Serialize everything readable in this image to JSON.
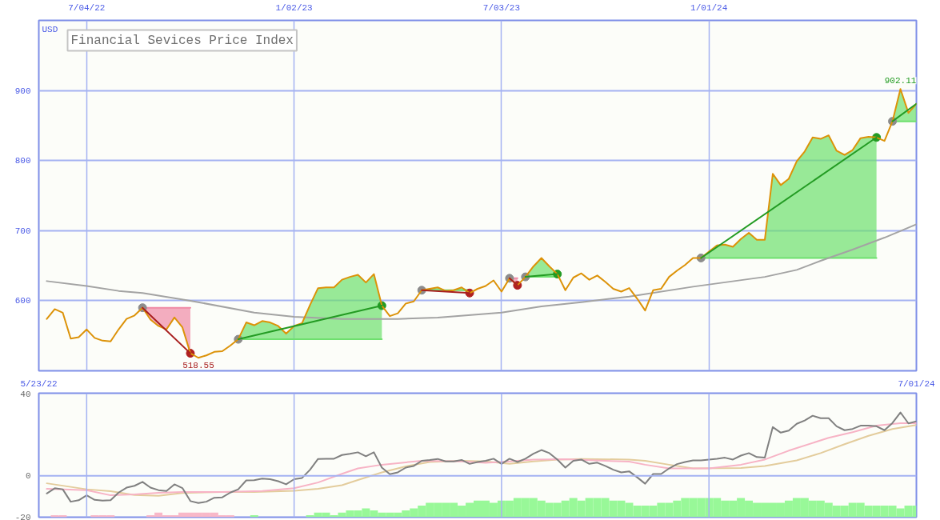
{
  "chart_data": [
    {
      "type": "line",
      "title": "Financial Sevices Price Index",
      "ylabel": "USD",
      "x": [
        "2022-05-30",
        "2022-06-06",
        "2022-06-13",
        "2022-06-20",
        "2022-06-27",
        "2022-07-04",
        "2022-07-11",
        "2022-07-18",
        "2022-07-25",
        "2022-08-01",
        "2022-08-08",
        "2022-08-15",
        "2022-08-22",
        "2022-08-29",
        "2022-09-05",
        "2022-09-12",
        "2022-09-19",
        "2022-09-26",
        "2022-10-03",
        "2022-10-10",
        "2022-10-17",
        "2022-10-24",
        "2022-10-31",
        "2022-11-07",
        "2022-11-14",
        "2022-11-21",
        "2022-11-28",
        "2022-12-05",
        "2022-12-12",
        "2022-12-19",
        "2022-12-26",
        "2023-01-02",
        "2023-01-09",
        "2023-01-16",
        "2023-01-23",
        "2023-01-30",
        "2023-02-06",
        "2023-02-13",
        "2023-02-20",
        "2023-02-27",
        "2023-03-06",
        "2023-03-13",
        "2023-03-20",
        "2023-03-27",
        "2023-04-03",
        "2023-04-10",
        "2023-04-17",
        "2023-04-24",
        "2023-05-01",
        "2023-05-08",
        "2023-05-15",
        "2023-05-22",
        "2023-05-29",
        "2023-06-05",
        "2023-06-12",
        "2023-06-19",
        "2023-06-26",
        "2023-07-03",
        "2023-07-10",
        "2023-07-17",
        "2023-07-24",
        "2023-07-31",
        "2023-08-07",
        "2023-08-14",
        "2023-08-21",
        "2023-08-28",
        "2023-09-04",
        "2023-09-11",
        "2023-09-18",
        "2023-09-25",
        "2023-10-02",
        "2023-10-09",
        "2023-10-16",
        "2023-10-23",
        "2023-10-30",
        "2023-11-06",
        "2023-11-13",
        "2023-11-20",
        "2023-11-27",
        "2023-12-04",
        "2023-12-11",
        "2023-12-18",
        "2023-12-25",
        "2024-01-01",
        "2024-01-08",
        "2024-01-15",
        "2024-01-22",
        "2024-01-29",
        "2024-02-05",
        "2024-02-12",
        "2024-02-19",
        "2024-02-26",
        "2024-03-04",
        "2024-03-11",
        "2024-03-18",
        "2024-03-25",
        "2024-04-01",
        "2024-04-08",
        "2024-04-15",
        "2024-04-22",
        "2024-04-29",
        "2024-05-06",
        "2024-05-13",
        "2024-05-20",
        "2024-05-27",
        "2024-06-03",
        "2024-06-10",
        "2024-06-17",
        "2024-06-24",
        "2024-07-01"
      ],
      "xlim": [
        "2022-05-23",
        "2024-07-01"
      ],
      "xticks": [
        {
          "value": "2022-05-23",
          "label": "5/23/22"
        },
        {
          "value": "2024-07-01",
          "label": "7/01/24"
        }
      ],
      "x2lim": [
        "2022-05-23",
        "2024-07-01"
      ],
      "x2ticks": [
        {
          "value": "2022-07-04",
          "label": "7/04/22"
        },
        {
          "value": "2023-01-02",
          "label": "1/02/23"
        },
        {
          "value": "2023-07-03",
          "label": "7/03/23"
        },
        {
          "value": "2024-01-01",
          "label": "1/01/24"
        }
      ],
      "ylim": [
        500,
        1000
      ],
      "yticks": [
        600,
        700,
        800,
        900
      ],
      "grid": true,
      "annotations": [
        {
          "text": "518.55",
          "x": "2022-10-10",
          "y": 518.55
        },
        {
          "text": "902.11",
          "x": "2024-06-17",
          "y": 902.11
        }
      ],
      "series": [
        {
          "color": "#f08aa6",
          "x": [
            "2022-08-22",
            "2022-08-29",
            "2022-09-05",
            "2022-09-12",
            "2022-09-19",
            "2022-09-26",
            "2022-10-03"
          ],
          "values": [
            590,
            590,
            590,
            590,
            590,
            590,
            590
          ],
          "lower": [
            590,
            573,
            564,
            559,
            576,
            562,
            525
          ],
          "upper": [
            590,
            590,
            590,
            590,
            590,
            590,
            590
          ]
        },
        {
          "color": "#6ee06e",
          "x": [
            "2022-11-14",
            "2022-11-21",
            "2022-11-28",
            "2022-12-05",
            "2022-12-12",
            "2022-12-19",
            "2022-12-26",
            "2023-01-02",
            "2023-01-09",
            "2023-01-16",
            "2023-01-23",
            "2023-01-30",
            "2023-02-06",
            "2023-02-13",
            "2023-02-20",
            "2023-02-27",
            "2023-03-06",
            "2023-03-13",
            "2023-03-20"
          ],
          "values": [
            545,
            545,
            545,
            545,
            545,
            545,
            545,
            545,
            545,
            545,
            545,
            545,
            545,
            545,
            545,
            545,
            545,
            545,
            545
          ],
          "lower": [
            545,
            545,
            545,
            545,
            545,
            545,
            545,
            545,
            545,
            545,
            545,
            545,
            545,
            545,
            545,
            545,
            545,
            545,
            545
          ],
          "upper": [
            545,
            569,
            565,
            571,
            569,
            564,
            553,
            564,
            568,
            594,
            618,
            619,
            619,
            630,
            634,
            637,
            626,
            638,
            593
          ]
        },
        {
          "color": "#6ee06e",
          "x": [
            "2023-04-24",
            "2023-05-01",
            "2023-05-08",
            "2023-05-15",
            "2023-05-22",
            "2023-05-29",
            "2023-06-05"
          ],
          "values": [
            615,
            615,
            615,
            615,
            615,
            615,
            615
          ],
          "lower": [
            615,
            615,
            615,
            614,
            615,
            615,
            611
          ],
          "upper": [
            615,
            617,
            619,
            615,
            615,
            619,
            615
          ]
        },
        {
          "color": "#f08aa6",
          "x": [
            "2023-07-10",
            "2023-07-17"
          ],
          "values": [
            632,
            632
          ],
          "lower": [
            632,
            622
          ],
          "upper": [
            632,
            632
          ]
        },
        {
          "color": "#6ee06e",
          "x": [
            "2023-07-24",
            "2023-07-31",
            "2023-08-07",
            "2023-08-14",
            "2023-08-21"
          ],
          "values": [
            634,
            634,
            634,
            634,
            634
          ],
          "lower": [
            634,
            634,
            634,
            634,
            634
          ],
          "upper": [
            634,
            649,
            661,
            649,
            638
          ]
        },
        {
          "color": "#6ee06e",
          "x": [
            "2023-12-25",
            "2024-01-01",
            "2024-01-08",
            "2024-01-15",
            "2024-01-22",
            "2024-01-29",
            "2024-02-05",
            "2024-02-12",
            "2024-02-19",
            "2024-02-26",
            "2024-03-04",
            "2024-03-11",
            "2024-03-18",
            "2024-03-25",
            "2024-04-01",
            "2024-04-08",
            "2024-04-15",
            "2024-04-22",
            "2024-04-29",
            "2024-05-06",
            "2024-05-13",
            "2024-05-20",
            "2024-05-27"
          ],
          "values": [
            661,
            661,
            661,
            661,
            661,
            661,
            661,
            661,
            661,
            661,
            661,
            661,
            661,
            661,
            661,
            661,
            661,
            661,
            661,
            661,
            661,
            661,
            661
          ],
          "lower": [
            661,
            661,
            661,
            661,
            661,
            661,
            661,
            661,
            661,
            661,
            661,
            661,
            661,
            661,
            661,
            661,
            661,
            661,
            661,
            661,
            661,
            661,
            661
          ],
          "upper": [
            661,
            670,
            679,
            680,
            677,
            688,
            697,
            687,
            687,
            781,
            765,
            774,
            799,
            813,
            833,
            831,
            836,
            814,
            808,
            815,
            832,
            834,
            833
          ]
        },
        {
          "color": "#6ee06e",
          "x": [
            "2024-06-10",
            "2024-06-17",
            "2024-06-24",
            "2024-07-01"
          ],
          "values": [
            856,
            856,
            856,
            856
          ],
          "lower": [
            856,
            856,
            856,
            856
          ],
          "upper": [
            856,
            902.11,
            868,
            881
          ]
        },
        {
          "color": "#a3a3a3",
          "x": [
            "2022-05-30",
            "2022-07-04",
            "2022-08-01",
            "2022-08-22",
            "2022-10-03",
            "2022-11-28",
            "2023-01-02",
            "2023-02-13",
            "2023-04-03",
            "2023-05-08",
            "2023-07-03",
            "2023-08-07",
            "2023-09-11",
            "2023-10-23",
            "2023-12-18",
            "2024-02-19",
            "2024-03-18",
            "2024-04-08",
            "2024-05-06",
            "2024-06-03",
            "2024-07-01"
          ],
          "values": [
            628,
            621,
            614,
            611,
            600,
            583,
            577,
            574,
            574,
            576,
            583,
            592,
            598,
            606,
            620,
            634,
            644,
            657,
            673,
            690,
            709
          ]
        },
        {
          "type": "scatter",
          "marker": "circle",
          "color": "#8c8c8c",
          "x": [
            "2022-08-22",
            "2022-11-14",
            "2023-04-24",
            "2023-07-10",
            "2023-07-24",
            "2023-12-25",
            "2024-06-10"
          ],
          "values": [
            590,
            545,
            615,
            632,
            634,
            661,
            856
          ]
        },
        {
          "type": "scatter",
          "marker": "circle",
          "color": "#239b23",
          "x": [
            "2023-03-20",
            "2023-08-21",
            "2024-05-27"
          ],
          "values": [
            593,
            638,
            833
          ]
        },
        {
          "type": "scatter",
          "marker": "circle",
          "color": "#b02020",
          "x": [
            "2022-10-03",
            "2023-06-05",
            "2023-07-17"
          ],
          "values": [
            525,
            611,
            622
          ]
        },
        {
          "color": "#dc9208",
          "values": [
            574,
            588,
            583,
            546,
            548,
            559,
            547,
            543,
            542,
            559,
            574,
            579,
            590,
            573,
            564,
            559,
            576,
            562,
            525,
            518.55,
            522,
            527,
            528,
            536,
            545,
            569,
            565,
            571,
            569,
            564,
            553,
            564,
            568,
            594,
            618,
            619,
            619,
            630,
            634,
            637,
            626,
            638,
            593,
            578,
            582,
            596,
            599,
            615,
            617,
            619,
            614,
            615,
            619,
            611,
            617,
            621,
            629,
            613,
            632,
            622,
            634,
            649,
            661,
            649,
            638,
            615,
            633,
            639,
            630,
            636,
            627,
            617,
            613,
            618,
            603,
            586,
            615,
            617,
            634,
            643,
            651,
            661,
            661,
            670,
            679,
            680,
            677,
            688,
            697,
            687,
            687,
            781,
            765,
            774,
            799,
            813,
            833,
            831,
            836,
            814,
            808,
            815,
            832,
            834,
            833,
            828,
            856,
            902.11,
            868,
            881
          ]
        },
        {
          "color": "#a81e1e",
          "x": [
            "2022-08-22",
            "2022-10-03"
          ],
          "values": [
            590,
            525
          ]
        },
        {
          "color": "#239b23",
          "x": [
            "2022-11-14",
            "2023-03-20"
          ],
          "values": [
            545,
            593
          ]
        },
        {
          "color": "#a81e1e",
          "x": [
            "2023-04-24",
            "2023-06-05"
          ],
          "values": [
            615,
            611
          ]
        },
        {
          "color": "#a81e1e",
          "x": [
            "2023-07-10",
            "2023-07-17"
          ],
          "values": [
            632,
            622
          ]
        },
        {
          "color": "#239b23",
          "x": [
            "2023-07-24",
            "2023-08-21"
          ],
          "values": [
            634,
            638
          ]
        },
        {
          "color": "#239b23",
          "x": [
            "2023-12-25",
            "2024-05-27"
          ],
          "values": [
            661,
            833
          ]
        },
        {
          "color": "#239b23",
          "x": [
            "2024-06-10",
            "2024-07-01"
          ],
          "values": [
            856,
            881
          ]
        }
      ]
    },
    {
      "type": "line",
      "tick_labels": "y",
      "x": [
        "2022-05-30",
        "2022-06-06",
        "2022-06-13",
        "2022-06-20",
        "2022-06-27",
        "2022-07-04",
        "2022-07-11",
        "2022-07-18",
        "2022-07-25",
        "2022-08-01",
        "2022-08-08",
        "2022-08-15",
        "2022-08-22",
        "2022-08-29",
        "2022-09-05",
        "2022-09-12",
        "2022-09-19",
        "2022-09-26",
        "2022-10-03",
        "2022-10-10",
        "2022-10-17",
        "2022-10-24",
        "2022-10-31",
        "2022-11-07",
        "2022-11-14",
        "2022-11-21",
        "2022-11-28",
        "2022-12-05",
        "2022-12-12",
        "2022-12-19",
        "2022-12-26",
        "2023-01-02",
        "2023-01-09",
        "2023-01-16",
        "2023-01-23",
        "2023-01-30",
        "2023-02-06",
        "2023-02-13",
        "2023-02-20",
        "2023-02-27",
        "2023-03-06",
        "2023-03-13",
        "2023-03-20",
        "2023-03-27",
        "2023-04-03",
        "2023-04-10",
        "2023-04-17",
        "2023-04-24",
        "2023-05-01",
        "2023-05-08",
        "2023-05-15",
        "2023-05-22",
        "2023-05-29",
        "2023-06-05",
        "2023-06-12",
        "2023-06-19",
        "2023-06-26",
        "2023-07-03",
        "2023-07-10",
        "2023-07-17",
        "2023-07-24",
        "2023-07-31",
        "2023-08-07",
        "2023-08-14",
        "2023-08-21",
        "2023-08-28",
        "2023-09-04",
        "2023-09-11",
        "2023-09-18",
        "2023-09-25",
        "2023-10-02",
        "2023-10-09",
        "2023-10-16",
        "2023-10-23",
        "2023-10-30",
        "2023-11-06",
        "2023-11-13",
        "2023-11-20",
        "2023-11-27",
        "2023-12-04",
        "2023-12-11",
        "2023-12-18",
        "2023-12-25",
        "2024-01-01",
        "2024-01-08",
        "2024-01-15",
        "2024-01-22",
        "2024-01-29",
        "2024-02-05",
        "2024-02-12",
        "2024-02-19",
        "2024-02-26",
        "2024-03-04",
        "2024-03-11",
        "2024-03-18",
        "2024-03-25",
        "2024-04-01",
        "2024-04-08",
        "2024-04-15",
        "2024-04-22",
        "2024-04-29",
        "2024-05-06",
        "2024-05-13",
        "2024-05-20",
        "2024-05-27",
        "2024-06-03",
        "2024-06-10",
        "2024-06-17",
        "2024-06-24",
        "2024-07-01"
      ],
      "xlim": [
        "2022-05-23",
        "2024-07-01"
      ],
      "ylim": [
        -20,
        40
      ],
      "yticks": [
        -20,
        0,
        40
      ],
      "ref_lines": [
        {
          "axis": "y",
          "value": 0,
          "color": "#a4b2f2"
        },
        {
          "axis": "x",
          "value": "2022-07-04",
          "color": "#a4b2f2"
        },
        {
          "axis": "x",
          "value": "2023-01-02",
          "color": "#a4b2f2"
        },
        {
          "axis": "x",
          "value": "2023-07-03",
          "color": "#a4b2f2"
        },
        {
          "axis": "x",
          "value": "2024-01-01",
          "color": "#a4b2f2"
        }
      ],
      "series": [
        {
          "type": "bar",
          "colors": [
            "#f8b8c8",
            "#f8b8c8",
            "#f8b8c8",
            "#f8b8c8",
            "#f8b8c8",
            "#f8b8c8",
            "#f8b8c8",
            "#f8b8c8",
            "#f8b8c8",
            "#f8b8c8",
            "#f8b8c8",
            "#f8b8c8",
            "#f8b8c8",
            "#f8b8c8",
            "#f8b8c8",
            "#f8b8c8",
            "#f8b8c8",
            "#f8b8c8",
            "#f8b8c8",
            "#f8b8c8",
            "#f8b8c8",
            "#f8b8c8",
            "#f8b8c8",
            "#f8b8c8",
            "#98f898",
            "#98f898",
            "#98f898",
            "#98f898",
            "#98f898",
            "#98f898",
            "#98f898",
            "#98f898",
            "#98f898",
            "#98f898",
            "#98f898",
            "#98f898",
            "#98f898",
            "#98f898",
            "#98f898",
            "#98f898",
            "#98f898",
            "#98f898",
            "#98f898",
            "#98f898",
            "#98f898",
            "#98f898",
            "#98f898",
            "#98f898",
            "#98f898",
            "#98f898",
            "#98f898",
            "#98f898",
            "#98f898",
            "#98f898",
            "#98f898",
            "#98f898",
            "#98f898",
            "#98f898",
            "#98f898",
            "#98f898",
            "#98f898",
            "#98f898",
            "#98f898",
            "#98f898",
            "#98f898",
            "#98f898",
            "#98f898",
            "#98f898",
            "#98f898",
            "#98f898",
            "#98f898",
            "#98f898",
            "#98f898",
            "#98f898",
            "#98f898",
            "#98f898",
            "#98f898",
            "#98f898",
            "#98f898",
            "#98f898",
            "#98f898",
            "#98f898",
            "#98f898",
            "#98f898",
            "#98f898",
            "#98f898",
            "#98f898",
            "#98f898",
            "#98f898",
            "#98f898",
            "#98f898",
            "#98f898",
            "#98f898",
            "#98f898",
            "#98f898",
            "#98f898",
            "#98f898",
            "#98f898",
            "#98f898",
            "#98f898",
            "#98f898",
            "#98f898",
            "#98f898",
            "#98f898",
            "#98f898",
            "#98f898",
            "#98f898",
            "#98f898",
            "#98f898",
            "#98f898"
          ],
          "values": [
            null,
            1.0,
            1.0,
            null,
            null,
            null,
            1.0,
            1.0,
            1.0,
            null,
            null,
            null,
            null,
            1.0,
            2.2,
            1.0,
            1.0,
            2.2,
            2.2,
            2.2,
            2.2,
            2.2,
            1.0,
            1.0,
            null,
            null,
            1.0,
            null,
            null,
            null,
            null,
            null,
            null,
            1.0,
            2.2,
            2.2,
            1.0,
            2.2,
            3.3,
            3.3,
            4.3,
            3.3,
            2.2,
            2.2,
            2.2,
            3.3,
            4.3,
            5.6,
            7.0,
            7.0,
            7.0,
            7.0,
            5.6,
            7.0,
            8.0,
            8.0,
            7.0,
            8.0,
            8.0,
            9.3,
            9.3,
            9.3,
            8.0,
            7.0,
            7.0,
            8.0,
            9.3,
            8.0,
            9.3,
            9.3,
            9.3,
            8.0,
            8.0,
            7.0,
            5.6,
            5.6,
            5.6,
            7.0,
            7.0,
            8.0,
            9.3,
            9.3,
            9.3,
            9.3,
            9.3,
            8.0,
            8.0,
            9.3,
            8.0,
            7.0,
            7.0,
            7.0,
            7.0,
            8.0,
            9.3,
            9.3,
            8.0,
            8.0,
            7.0,
            5.6,
            5.6,
            7.0,
            7.0,
            5.6,
            5.6,
            5.6,
            5.6,
            4.3,
            5.6,
            5.6
          ],
          "base": [
            null,
            -20,
            -20,
            null,
            null,
            null,
            -20,
            -20,
            -20,
            null,
            null,
            null,
            null,
            -20,
            -20,
            -20,
            -20,
            -20,
            -20,
            -20,
            -20,
            -20,
            -20,
            -20,
            null,
            null,
            -20,
            null,
            null,
            null,
            null,
            null,
            null,
            -20,
            -20,
            -20,
            -20,
            -20,
            -20,
            -20,
            -20,
            -20,
            -20,
            -20,
            -20,
            -20,
            -20,
            -20,
            -20,
            -20,
            -20,
            -20,
            -20,
            -20,
            -20,
            -20,
            -20,
            -20,
            -20,
            -20,
            -20,
            -20,
            -20,
            -20,
            -20,
            -20,
            -20,
            -20,
            -20,
            -20,
            -20,
            -20,
            -20,
            -20,
            -20,
            -20,
            -20,
            -20,
            -20,
            -20,
            -20,
            -20,
            -20,
            -20,
            -20,
            -20,
            -20,
            -20,
            -20,
            -20,
            -20,
            -20,
            -20,
            -20,
            -20,
            -20,
            -20,
            -20,
            -20,
            -20,
            -20,
            -20,
            -20,
            -20,
            -20,
            -20,
            -20,
            -20,
            -20,
            -20
          ]
        },
        {
          "color": "#e3cc9c",
          "x": [
            "2022-05-30",
            "2022-07-04",
            "2022-07-25",
            "2022-08-15",
            "2022-09-05",
            "2022-09-26",
            "2022-10-31",
            "2022-11-28",
            "2023-01-02",
            "2023-01-23",
            "2023-02-13",
            "2023-02-27",
            "2023-03-20",
            "2023-04-10",
            "2023-05-01",
            "2023-05-29",
            "2023-06-19",
            "2023-07-10",
            "2023-07-31",
            "2023-08-21",
            "2023-09-11",
            "2023-10-23",
            "2023-11-06",
            "2023-11-27",
            "2023-12-18",
            "2024-01-29",
            "2024-02-19",
            "2024-03-18",
            "2024-04-08",
            "2024-04-29",
            "2024-05-20",
            "2024-06-10",
            "2024-07-01"
          ],
          "values": [
            -3.6,
            -6.5,
            -7.4,
            -9.3,
            -9.6,
            -8.3,
            -7.8,
            -7.8,
            -7.2,
            -6.3,
            -4.5,
            -2.0,
            1.7,
            4.6,
            6.7,
            7.3,
            7.0,
            5.8,
            7.0,
            7.9,
            8.2,
            7.9,
            7.3,
            5.4,
            3.6,
            3.8,
            4.8,
            7.5,
            11.0,
            15.3,
            19.4,
            22.7,
            24.6
          ]
        },
        {
          "color": "#f7b3c5",
          "x": [
            "2022-05-30",
            "2022-07-04",
            "2022-07-25",
            "2022-08-15",
            "2022-09-05",
            "2022-09-26",
            "2022-10-31",
            "2022-12-05",
            "2023-01-02",
            "2023-01-23",
            "2023-02-13",
            "2023-02-27",
            "2023-03-20",
            "2023-04-24",
            "2023-05-29",
            "2023-06-19",
            "2023-07-10",
            "2023-07-31",
            "2023-08-28",
            "2023-10-02",
            "2023-10-23",
            "2023-11-06",
            "2023-11-27",
            "2024-01-01",
            "2024-01-29",
            "2024-02-19",
            "2024-03-11",
            "2024-04-15",
            "2024-05-06",
            "2024-05-27",
            "2024-06-17",
            "2024-07-01"
          ],
          "values": [
            -6.3,
            -6.9,
            -9.4,
            -9.0,
            -8.2,
            -7.8,
            -7.8,
            -7.3,
            -6.0,
            -3.2,
            1.0,
            3.6,
            5.4,
            7.3,
            7.0,
            6.3,
            7.0,
            7.9,
            8.1,
            7.3,
            6.9,
            5.4,
            3.6,
            3.6,
            5.4,
            7.9,
            12.2,
            18.4,
            21.1,
            24.3,
            25.5,
            25.5
          ]
        },
        {
          "color": "#808080",
          "values": [
            -8.5,
            -6.0,
            -6.5,
            -12.5,
            -11.8,
            -9.4,
            -11.6,
            -12.0,
            -11.8,
            -8.1,
            -5.7,
            -4.8,
            -2.9,
            -5.7,
            -6.9,
            -7.3,
            -4.1,
            -5.9,
            -12.2,
            -13.1,
            -12.5,
            -10.6,
            -10.4,
            -8.1,
            -6.5,
            -2.2,
            -2.1,
            -1.3,
            -1.6,
            -2.6,
            -4.1,
            -1.6,
            -1.0,
            3.0,
            8.2,
            8.3,
            8.3,
            10.1,
            10.7,
            11.4,
            9.5,
            11.4,
            4.0,
            0.8,
            1.7,
            4.0,
            4.8,
            7.3,
            7.7,
            8.2,
            7.0,
            7.0,
            7.7,
            5.8,
            6.7,
            7.3,
            8.3,
            5.8,
            8.3,
            6.7,
            8.3,
            10.7,
            12.5,
            11.0,
            7.9,
            4.0,
            7.3,
            7.9,
            5.8,
            6.4,
            4.8,
            3.0,
            1.7,
            2.2,
            -0.7,
            -3.8,
            0.9,
            0.9,
            3.6,
            5.7,
            6.7,
            7.5,
            7.5,
            7.9,
            8.3,
            8.8,
            7.9,
            9.8,
            11.0,
            9.1,
            8.8,
            23.6,
            20.9,
            21.9,
            25.2,
            26.8,
            29.1,
            27.9,
            27.9,
            24.0,
            22.1,
            22.7,
            24.3,
            24.3,
            24.0,
            22.1,
            25.6,
            30.7,
            25.4,
            26.4
          ]
        }
      ]
    }
  ]
}
